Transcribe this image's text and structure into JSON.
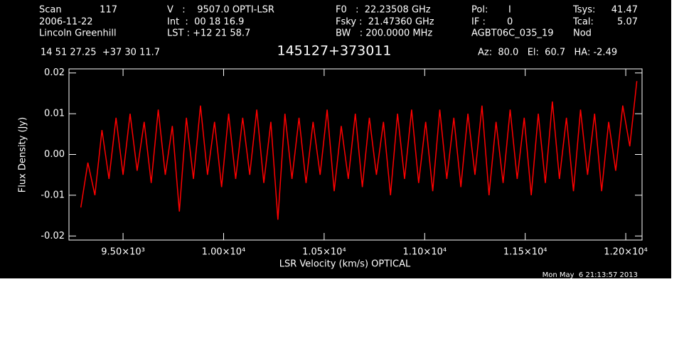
{
  "chart_data": {
    "type": "line",
    "title": "145127+373011",
    "xlabel": "LSR Velocity (km/s) OPTICAL",
    "ylabel": "Flux Density (Jy)",
    "annotations": [
      "Scan",
      "117",
      "2006-11-22",
      "Lincoln Greenhill",
      "V   :    9507.0 OPTI-LSR",
      "Int  :  00 18 16.9",
      "LST : +12 21 58.7",
      "F0   :  22.23508 GHz",
      "Fsky :  21.47360 GHz",
      "BW   : 200.0000 MHz",
      "Pol:",
      "I",
      "IF :",
      "0",
      "AGBT06C_035_19",
      "Tsys:",
      "41.47",
      "Tcal:",
      "5.07",
      "Nod",
      "14 51 27.25  +37 30 11.7",
      "Az:  80.0   El:  60.7   HA: -2.49",
      "Mon May  6 21:13:57 2013"
    ],
    "x": [
      9290,
      9325,
      9360,
      9395,
      9430,
      9465,
      9500,
      9535,
      9570,
      9605,
      9640,
      9675,
      9710,
      9745,
      9780,
      9815,
      9850,
      9885,
      9920,
      9955,
      9990,
      10025,
      10060,
      10095,
      10130,
      10165,
      10200,
      10235,
      10270,
      10305,
      10340,
      10375,
      10410,
      10445,
      10480,
      10515,
      10550,
      10585,
      10620,
      10655,
      10690,
      10725,
      10760,
      10795,
      10830,
      10865,
      10900,
      10935,
      10970,
      11005,
      11040,
      11075,
      11110,
      11145,
      11180,
      11215,
      11250,
      11285,
      11320,
      11355,
      11390,
      11425,
      11460,
      11495,
      11530,
      11565,
      11600,
      11635,
      11670,
      11705,
      11740,
      11775,
      11810,
      11845,
      11880,
      11915,
      11950,
      11985,
      12020,
      12055
    ],
    "values": [
      -0.013,
      -0.002,
      -0.01,
      0.006,
      -0.006,
      0.009,
      -0.005,
      0.01,
      -0.004,
      0.008,
      -0.007,
      0.011,
      -0.005,
      0.007,
      -0.014,
      0.009,
      -0.006,
      0.012,
      -0.005,
      0.008,
      -0.008,
      0.01,
      -0.006,
      0.009,
      -0.005,
      0.011,
      -0.007,
      0.008,
      -0.016,
      0.01,
      -0.006,
      0.009,
      -0.007,
      0.008,
      -0.005,
      0.011,
      -0.009,
      0.007,
      -0.006,
      0.01,
      -0.008,
      0.009,
      -0.005,
      0.008,
      -0.01,
      0.01,
      -0.006,
      0.011,
      -0.007,
      0.008,
      -0.009,
      0.011,
      -0.006,
      0.009,
      -0.008,
      0.01,
      -0.005,
      0.012,
      -0.01,
      0.008,
      -0.007,
      0.011,
      -0.006,
      0.009,
      -0.01,
      0.01,
      -0.007,
      0.013,
      -0.006,
      0.009,
      -0.009,
      0.011,
      -0.005,
      0.01,
      -0.009,
      0.008,
      -0.004,
      0.012,
      0.002,
      0.018
    ],
    "color": "#ff0000",
    "xlim": [
      9231,
      12081
    ],
    "xticks": [
      {
        "value": 9500,
        "label": "9.50×10³"
      },
      {
        "value": 10000,
        "label": "1.00×10⁴"
      },
      {
        "value": 10500,
        "label": "1.05×10⁴"
      },
      {
        "value": 11000,
        "label": "1.10×10⁴"
      },
      {
        "value": 11500,
        "label": "1.15×10⁴"
      },
      {
        "value": 12000,
        "label": "1.20×10⁴"
      }
    ],
    "ylim": [
      -0.021,
      0.021
    ],
    "yticks": [
      -0.02,
      -0.01,
      {
        "value": 0,
        "label": "0.00"
      },
      0.01,
      0.02
    ]
  }
}
